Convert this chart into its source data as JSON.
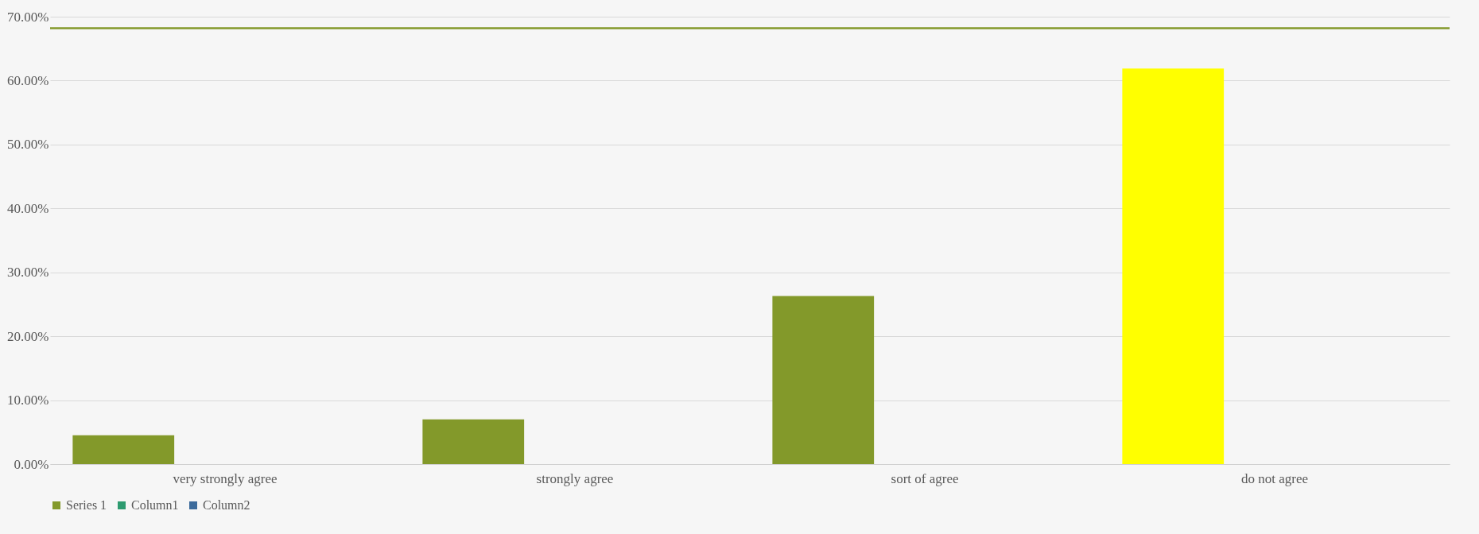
{
  "chart_data": {
    "type": "bar",
    "categories": [
      "very strongly agree",
      "strongly agree",
      "sort of agree",
      "do not agree"
    ],
    "series": [
      {
        "name": "Series 1",
        "color": "#83992a",
        "colors": [
          "#83992a",
          "#83992a",
          "#83992a",
          "#ffff00"
        ],
        "values": [
          4.5,
          7.0,
          26.3,
          61.9
        ]
      },
      {
        "name": "Column1",
        "color": "#2e9b70",
        "values": [
          null,
          null,
          null,
          null
        ]
      },
      {
        "name": "Column2",
        "color": "#3d6b9c",
        "values": [
          null,
          null,
          null,
          null
        ]
      }
    ],
    "ylim": [
      0,
      70
    ],
    "yticks": [
      {
        "value": 0,
        "label": "0.00%"
      },
      {
        "value": 10,
        "label": "10.00%"
      },
      {
        "value": 20,
        "label": "20.00%"
      },
      {
        "value": 30,
        "label": "30.00%"
      },
      {
        "value": 40,
        "label": "40.00%"
      },
      {
        "value": 50,
        "label": "50.00%"
      },
      {
        "value": 60,
        "label": "60.00%"
      },
      {
        "value": 70,
        "label": "70.00%"
      }
    ],
    "ref_lines": [
      {
        "axis": "y",
        "value": 68.2,
        "color": "#83992a"
      }
    ],
    "grid": "y",
    "legend": "bottom"
  }
}
